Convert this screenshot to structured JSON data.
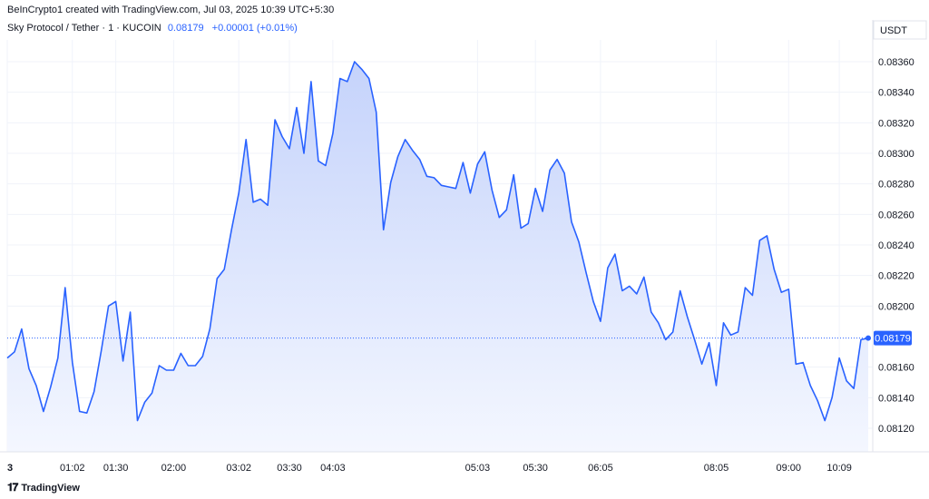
{
  "header": {
    "creator_line": "BeInCrypto1 created with TradingView.com, Jul 03, 2025 10:39 UTC+5:30",
    "symbol": "Sky Protocol / Tether · 1 · KUCOIN",
    "last_price": "0.08179",
    "change": "+0.00001 (+0.01%)"
  },
  "footer": {
    "logo_text": "TradingView",
    "logo_icon": "tradingview-logo-icon"
  },
  "colors": {
    "line": "#2962ff",
    "fill_top": "#c5d3fb",
    "fill_bottom": "#f4f7ff",
    "grid": "#f0f3fa"
  },
  "chart_data": {
    "type": "area",
    "currency_label": "USDT",
    "yticks": [
      "0.08360",
      "0.08340",
      "0.08320",
      "0.08300",
      "0.08280",
      "0.08260",
      "0.08240",
      "0.08220",
      "0.08200",
      "0.08160",
      "0.08140",
      "0.08120"
    ],
    "xticks": [
      {
        "label": "3",
        "index": 0
      },
      {
        "label": "01:02",
        "index": 9
      },
      {
        "label": "01:30",
        "index": 15
      },
      {
        "label": "02:00",
        "index": 23
      },
      {
        "label": "03:02",
        "index": 32
      },
      {
        "label": "03:30",
        "index": 39
      },
      {
        "label": "04:03",
        "index": 45
      },
      {
        "label": "05:03",
        "index": 65
      },
      {
        "label": "05:30",
        "index": 73
      },
      {
        "label": "06:05",
        "index": 82
      },
      {
        "label": "08:05",
        "index": 98
      },
      {
        "label": "09:00",
        "index": 108
      },
      {
        "label": "10:09",
        "index": 115
      }
    ],
    "last_value": 0.08179,
    "last_label": "0.08179",
    "values": [
      0.08166,
      0.0817,
      0.08185,
      0.08159,
      0.08148,
      0.08131,
      0.08147,
      0.08166,
      0.08212,
      0.08163,
      0.08131,
      0.0813,
      0.08144,
      0.08171,
      0.082,
      0.08203,
      0.08164,
      0.08196,
      0.08125,
      0.08137,
      0.08143,
      0.08161,
      0.08158,
      0.08158,
      0.08169,
      0.08161,
      0.08161,
      0.08167,
      0.08185,
      0.08218,
      0.08224,
      0.0825,
      0.08274,
      0.08309,
      0.08268,
      0.0827,
      0.08266,
      0.08322,
      0.08311,
      0.08303,
      0.0833,
      0.083,
      0.08347,
      0.08295,
      0.08292,
      0.08313,
      0.08349,
      0.08347,
      0.0836,
      0.08355,
      0.08349,
      0.08327,
      0.0825,
      0.08281,
      0.08298,
      0.08309,
      0.08302,
      0.08296,
      0.08285,
      0.08284,
      0.08279,
      0.08278,
      0.08277,
      0.08294,
      0.08274,
      0.08293,
      0.08301,
      0.08276,
      0.08258,
      0.08263,
      0.08286,
      0.08251,
      0.08254,
      0.08277,
      0.08262,
      0.08289,
      0.08296,
      0.08287,
      0.08255,
      0.08242,
      0.08222,
      0.08203,
      0.0819,
      0.08225,
      0.08234,
      0.0821,
      0.08213,
      0.08208,
      0.08219,
      0.08196,
      0.08189,
      0.08178,
      0.08183,
      0.0821,
      0.08193,
      0.08178,
      0.08162,
      0.08176,
      0.08148,
      0.08189,
      0.08181,
      0.08183,
      0.08212,
      0.08207,
      0.08243,
      0.08246,
      0.08224,
      0.08209,
      0.08211,
      0.08162,
      0.08163,
      0.08148,
      0.08138,
      0.08125,
      0.0814,
      0.08166,
      0.08151,
      0.08146,
      0.08178,
      0.08179
    ]
  }
}
